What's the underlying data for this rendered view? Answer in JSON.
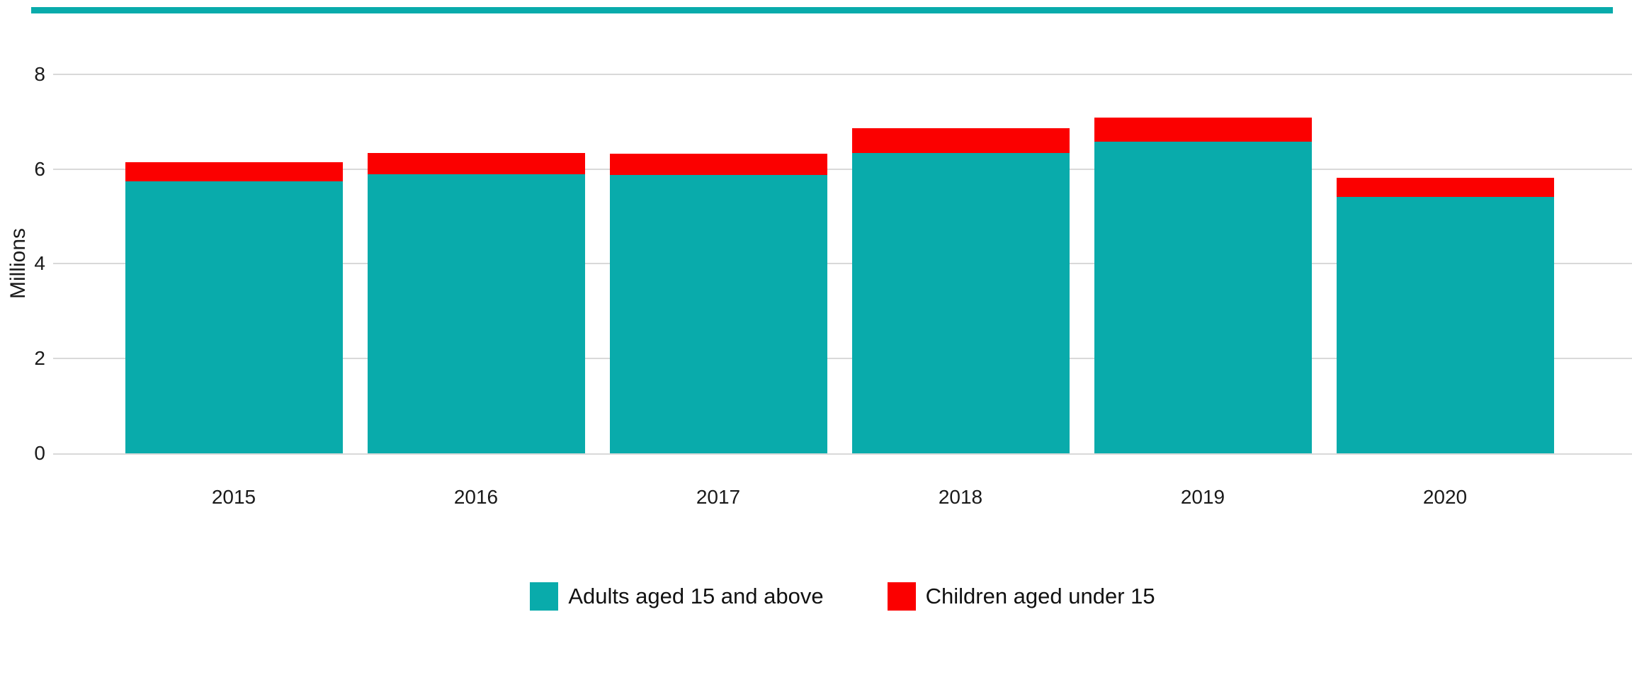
{
  "page": {
    "background_color": "#ffffff",
    "accent_bar_color": "#09abab",
    "axis_text_color": "#1a1a1a",
    "gridline_color": "#d9d9d9"
  },
  "chart_data": {
    "type": "bar",
    "stacked": true,
    "title": "",
    "xlabel": "",
    "ylabel": "Millions",
    "categories": [
      "2015",
      "2016",
      "2017",
      "2018",
      "2019",
      "2020"
    ],
    "series": [
      {
        "name": "Adults aged 15 and above",
        "color": "#09abab",
        "values": [
          5.74,
          5.89,
          5.88,
          6.34,
          6.58,
          5.41
        ]
      },
      {
        "name": "Children aged under 15",
        "color": "#fb0000",
        "values": [
          0.41,
          0.45,
          0.45,
          0.53,
          0.51,
          0.41
        ]
      }
    ],
    "y_ticks": [
      0,
      2,
      4,
      6,
      8
    ],
    "ylim": [
      0,
      8
    ],
    "grid": "horizontal",
    "legend_position": "bottom-center"
  }
}
